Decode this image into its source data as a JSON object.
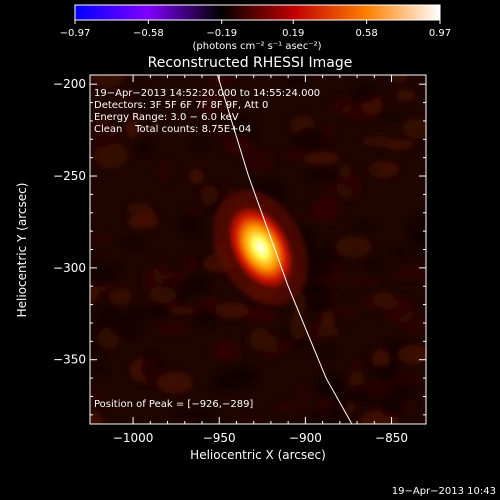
{
  "colorbar": {
    "ticks": [
      "-0.97",
      "-0.58",
      "-0.19",
      "0.19",
      "0.58",
      "0.97"
    ],
    "unit_label": "(photons cm⁻² s⁻¹ asec⁻²)"
  },
  "chart_data": {
    "type": "heatmap",
    "title": "Reconstructed RHESSI Image",
    "xlabel": "Heliocentric X (arcsec)",
    "ylabel": "Heliocentric Y (arcsec)",
    "xlim": [
      -1025,
      -830
    ],
    "ylim": [
      -385,
      -195
    ],
    "xticks": [
      -1000,
      -950,
      -900,
      -850
    ],
    "xtick_labels": [
      "−1000",
      "−950",
      "−900",
      "−850"
    ],
    "yticks": [
      -200,
      -250,
      -300,
      -350
    ],
    "ytick_labels": [
      "−200",
      "−250",
      "−300",
      "−350"
    ],
    "value_range": [
      -0.97,
      0.97
    ],
    "colormap": [
      "#0000ff",
      "#8000ff",
      "#000000",
      "#c00000",
      "#ff8000",
      "#ffffff"
    ],
    "source": {
      "x": -926,
      "y": -289,
      "semi_major_arcsec": 15,
      "semi_minor_arcsec": 9,
      "tilt_deg": 62,
      "peak": 0.97
    },
    "limb": [
      [
        -951,
        -195
      ],
      [
        -933,
        -250
      ],
      [
        -910,
        -310
      ],
      [
        -888,
        -360
      ],
      [
        -873,
        -385
      ]
    ],
    "annotations": [
      "19−Apr−2013 14:52:20.000 to 14:55:24.000",
      "Detectors: 3F 5F 6F 7F 8F 9F, Att 0",
      "Energy Range: 3.0 − 6.0 keV",
      "Clean    Total counts: 8.75E+04"
    ],
    "peak_label": "Position of Peak = [−926,−289]"
  },
  "footer": {
    "timestamp": "19−Apr−2013 10:43"
  }
}
